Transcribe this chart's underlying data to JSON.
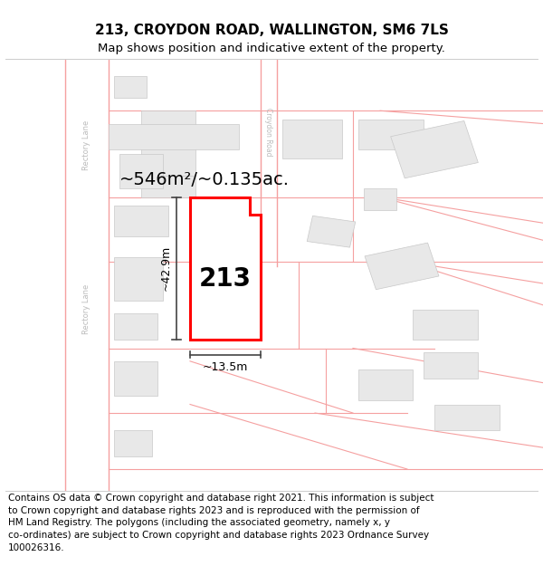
{
  "title_line1": "213, CROYDON ROAD, WALLINGTON, SM6 7LS",
  "title_line2": "Map shows position and indicative extent of the property.",
  "area_text": "~546m²/~0.135ac.",
  "width_label": "~13.5m",
  "height_label": "~42.9m",
  "number_label": "213",
  "footer_lines": [
    "Contains OS data © Crown copyright and database right 2021. This information is subject",
    "to Crown copyright and database rights 2023 and is reproduced with the permission of",
    "HM Land Registry. The polygons (including the associated geometry, namely x, y",
    "co-ordinates) are subject to Crown copyright and database rights 2023 Ordnance Survey",
    "100026316."
  ],
  "bg_color": "#ffffff",
  "map_bg": "#ffffff",
  "building_fill": "#e8e8e8",
  "building_edge": "#c8c8c8",
  "road_line_color": "#f5a0a0",
  "highlight_color": "#ff0000",
  "dim_line_color": "#444444",
  "label_road_color": "#bbbbbb",
  "title_fontsize": 11,
  "subtitle_fontsize": 9.5,
  "footer_fontsize": 7.5,
  "area_fontsize": 14,
  "dim_fontsize": 9,
  "number_fontsize": 20
}
